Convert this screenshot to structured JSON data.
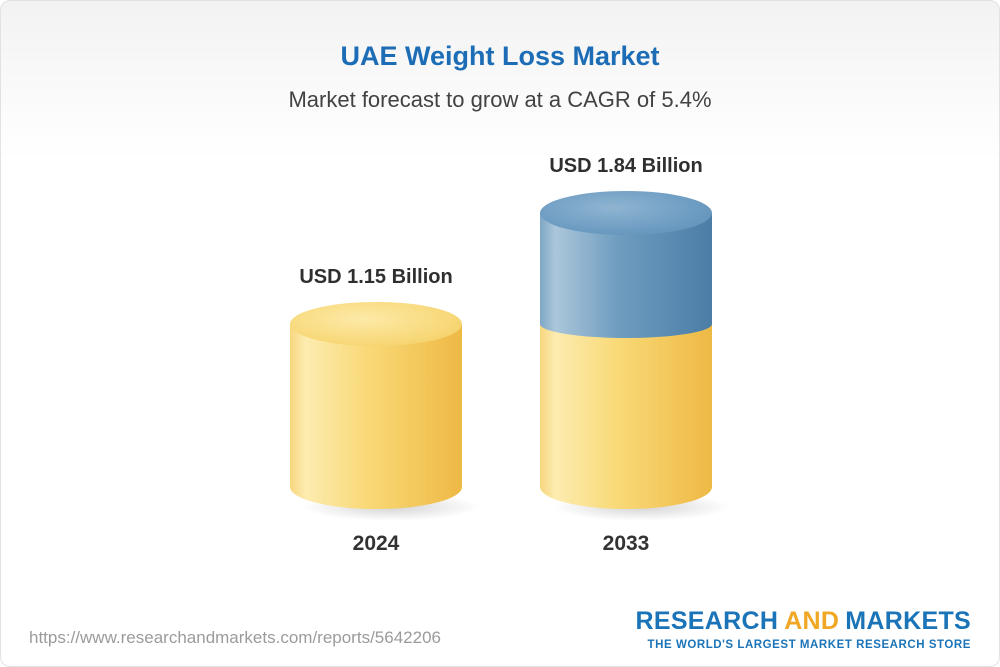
{
  "chart_data": {
    "type": "bar",
    "bar_style": "3d-cylinder",
    "title": "UAE Weight Loss Market",
    "subtitle": "Market forecast to grow at a CAGR of 5.4%",
    "cagr_percent": 5.4,
    "categories": [
      "2024",
      "2033"
    ],
    "values": [
      1.15,
      1.84
    ],
    "value_labels": [
      "USD 1.15 Billion",
      "USD 1.84 Billion"
    ],
    "unit": "USD Billion",
    "ylim": [
      0,
      2
    ],
    "grid": false,
    "legend_position": "none",
    "colors": {
      "bar_base": "#f6cf66",
      "bar_growth": "#6f9dc0",
      "title_text": "#1d6db6",
      "subtitle_text": "#424242",
      "label_text": "#2f2f2f"
    }
  },
  "footer": {
    "url": "https://www.researchandmarkets.com/reports/5642206",
    "logo": {
      "research": "RESEARCH",
      "and": "AND",
      "markets": "MARKETS",
      "tagline": "THE WORLD'S LARGEST MARKET RESEARCH STORE",
      "colors": {
        "blue": "#1b74b8",
        "gold": "#f0a824"
      }
    }
  }
}
